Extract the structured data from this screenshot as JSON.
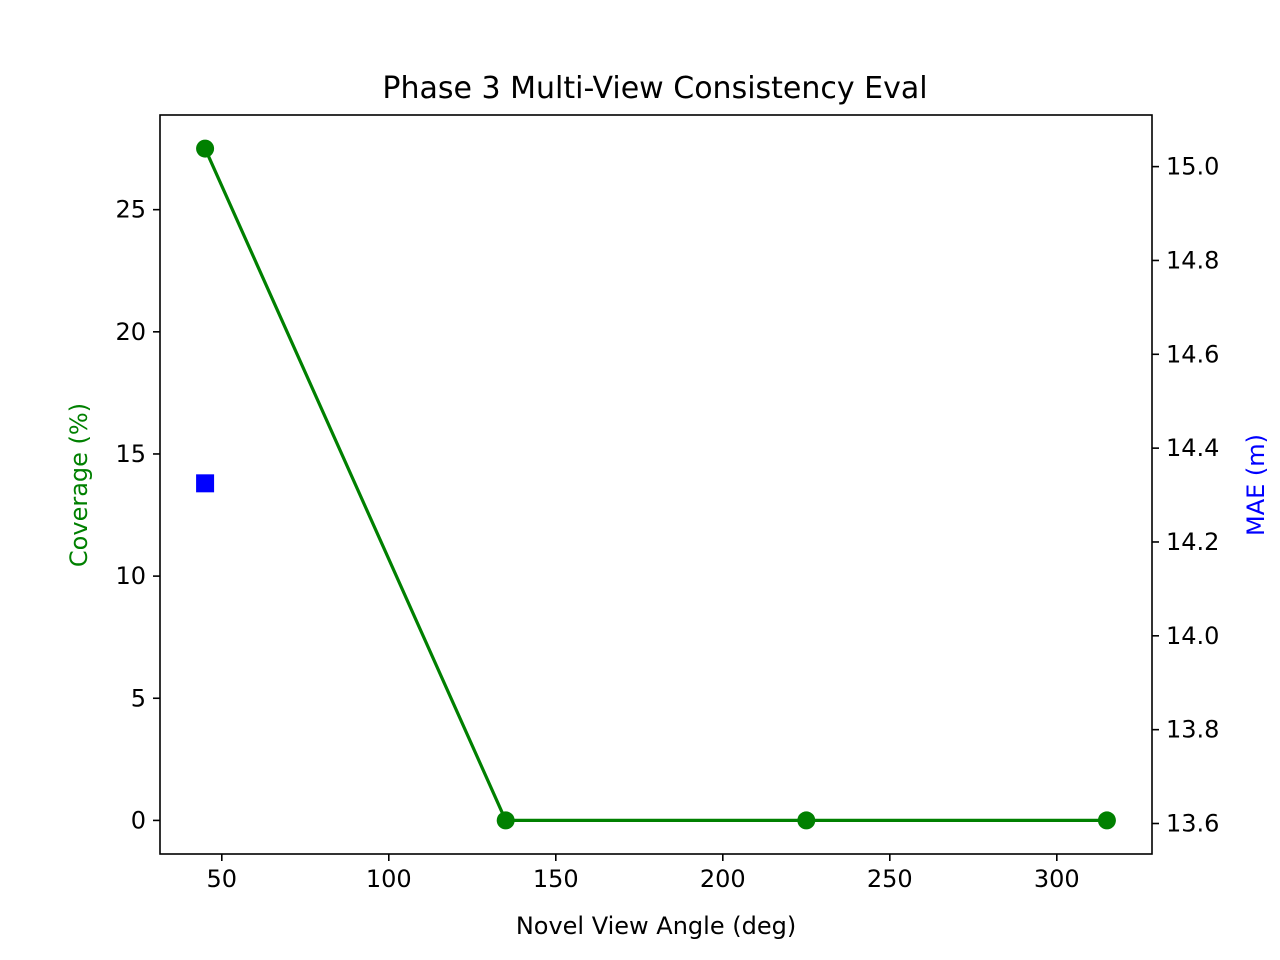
{
  "chart_data": {
    "type": "line",
    "title": "Phase 3 Multi-View Consistency Eval",
    "xlabel": "Novel View Angle (deg)",
    "ylabel": "Coverage (%)",
    "y2label": "MAE (m)",
    "x": [
      45,
      135,
      225,
      315
    ],
    "xlim": [
      31.5,
      328.5
    ],
    "ylim": [
      -1.375,
      28.875
    ],
    "y2lim": [
      13.535,
      15.11
    ],
    "xticks": [
      50,
      100,
      150,
      200,
      250,
      300
    ],
    "yticks": [
      0,
      5,
      10,
      15,
      20,
      25
    ],
    "y2ticks": [
      13.6,
      13.8,
      14.0,
      14.2,
      14.4,
      14.6,
      14.8,
      15.0
    ],
    "y2tick_labels": [
      "13.6",
      "13.8",
      "14.0",
      "14.2",
      "14.4",
      "14.6",
      "14.8",
      "15.0"
    ],
    "series": [
      {
        "axis": "left",
        "color": "#008000",
        "marker": "circle",
        "line": true,
        "values": [
          27.5,
          0.0,
          0.0,
          0.0
        ]
      },
      {
        "axis": "right",
        "color": "#0000ff",
        "marker": "square",
        "line": false,
        "x": [
          45
        ],
        "values": [
          14.325
        ]
      }
    ],
    "ylabel_color": "#008000",
    "y2label_color": "#0000ff",
    "grid": false,
    "legend": "none"
  }
}
